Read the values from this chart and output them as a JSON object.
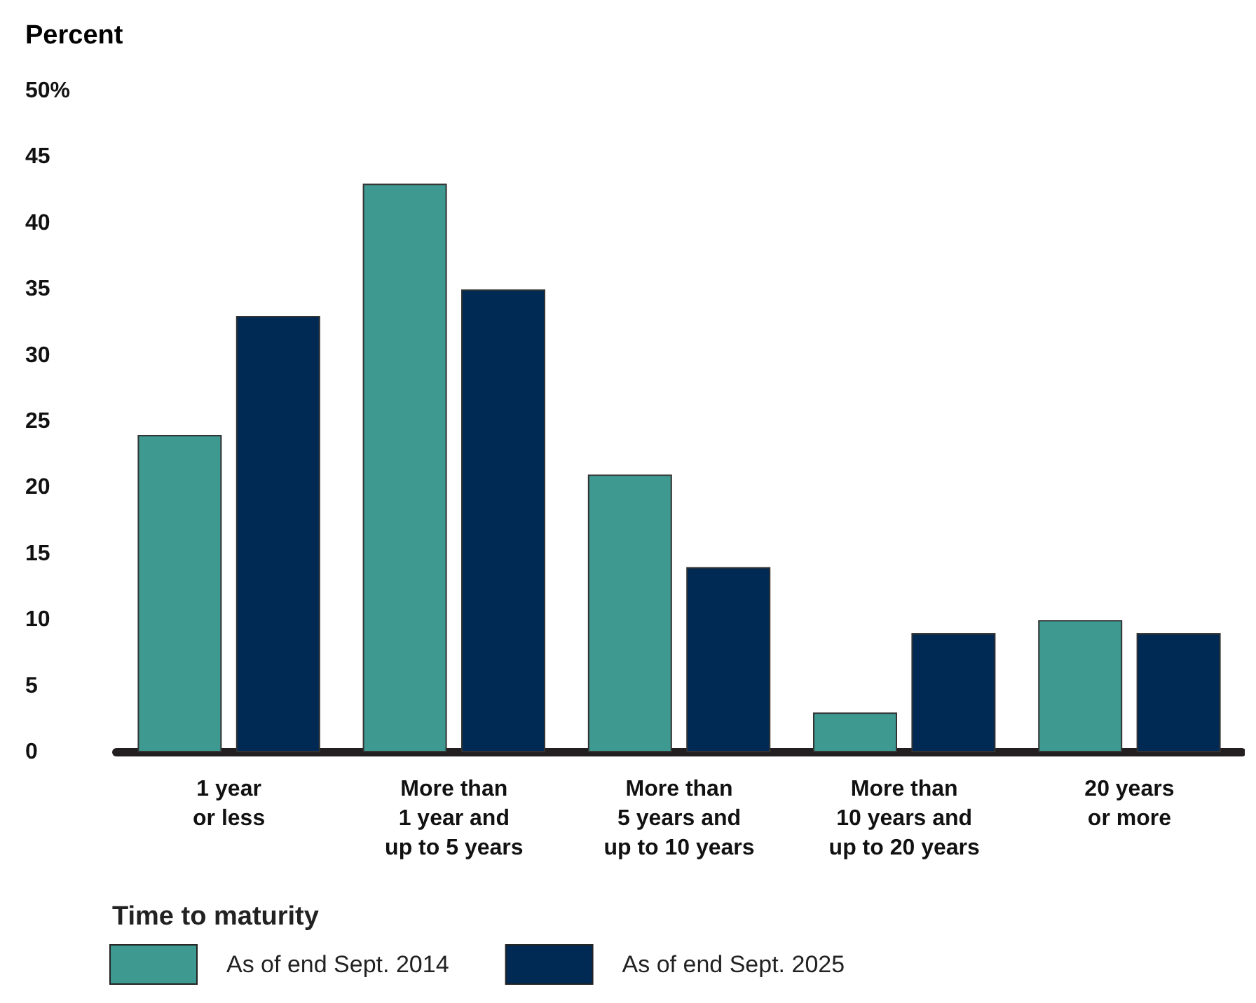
{
  "chart_data": {
    "type": "bar",
    "ylabel": "Percent",
    "xlabel": "Time to maturity",
    "categories": [
      "1 year\nor less",
      "More than\n1 year and\nup to 5 years",
      "More than\n5 years and\nup to 10 years",
      "More than\n10 years and\nup to 20 years",
      "20 years\nor more"
    ],
    "series": [
      {
        "name": "As of end Sept. 2014",
        "color": "#3e9990",
        "values": [
          24,
          43,
          21,
          3,
          10
        ]
      },
      {
        "name": "As of end Sept. 2025",
        "color": "#002a54",
        "values": [
          33,
          35,
          14,
          9,
          9
        ]
      }
    ],
    "ylim": [
      0,
      50
    ],
    "yticks": [
      0,
      5,
      10,
      15,
      20,
      25,
      30,
      35,
      40,
      45,
      {
        "value": 50,
        "label": "50%"
      }
    ],
    "grid": false,
    "legend": "bottom"
  }
}
